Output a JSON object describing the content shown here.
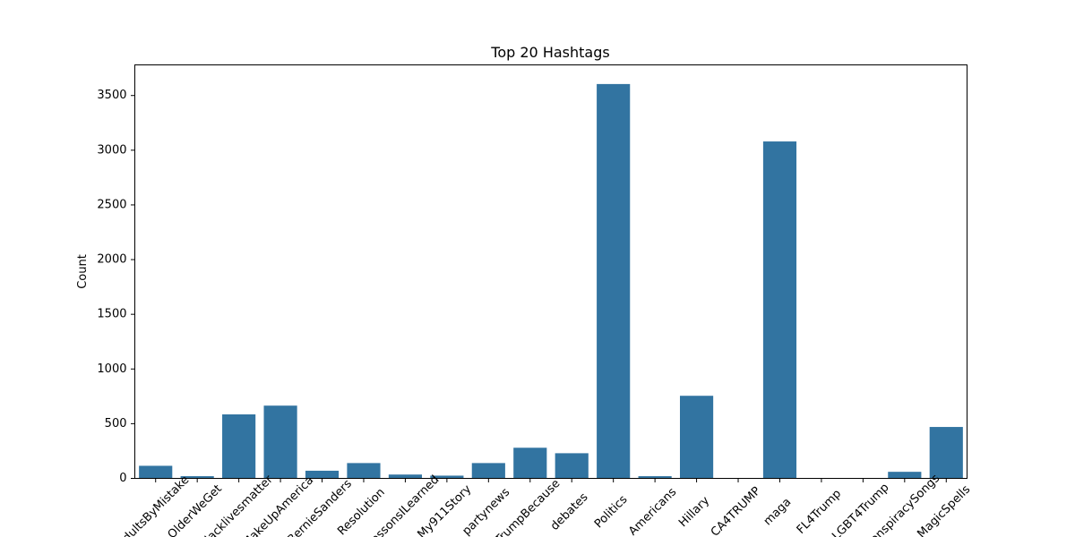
{
  "chart_data": {
    "type": "bar",
    "title": "Top 20 Hashtags",
    "xlabel": "",
    "ylabel": "Count",
    "ylim": [
      0,
      3780
    ],
    "yticks": [
      0,
      500,
      1000,
      1500,
      2000,
      2500,
      3000,
      3500
    ],
    "grid": false,
    "bar_color": "#3274a1",
    "categories": [
      "AdultsByMistake",
      "OlderWeGet",
      "blacklivesmatter",
      "MakeUpAmerica",
      "BernieSanders",
      "Resolution",
      "LessonsILearned",
      "My911Story",
      "partynews",
      "TrumpBecause",
      "debates",
      "Politics",
      "Americans",
      "Hillary",
      "CA4TRUMP",
      "maga",
      "FL4Trump",
      "LGBT4Trump",
      "ConspiracySongs",
      "MagicSpells"
    ],
    "values": [
      115,
      20,
      585,
      665,
      70,
      140,
      35,
      25,
      140,
      280,
      230,
      3605,
      20,
      755,
      0,
      3080,
      0,
      0,
      60,
      470
    ]
  }
}
